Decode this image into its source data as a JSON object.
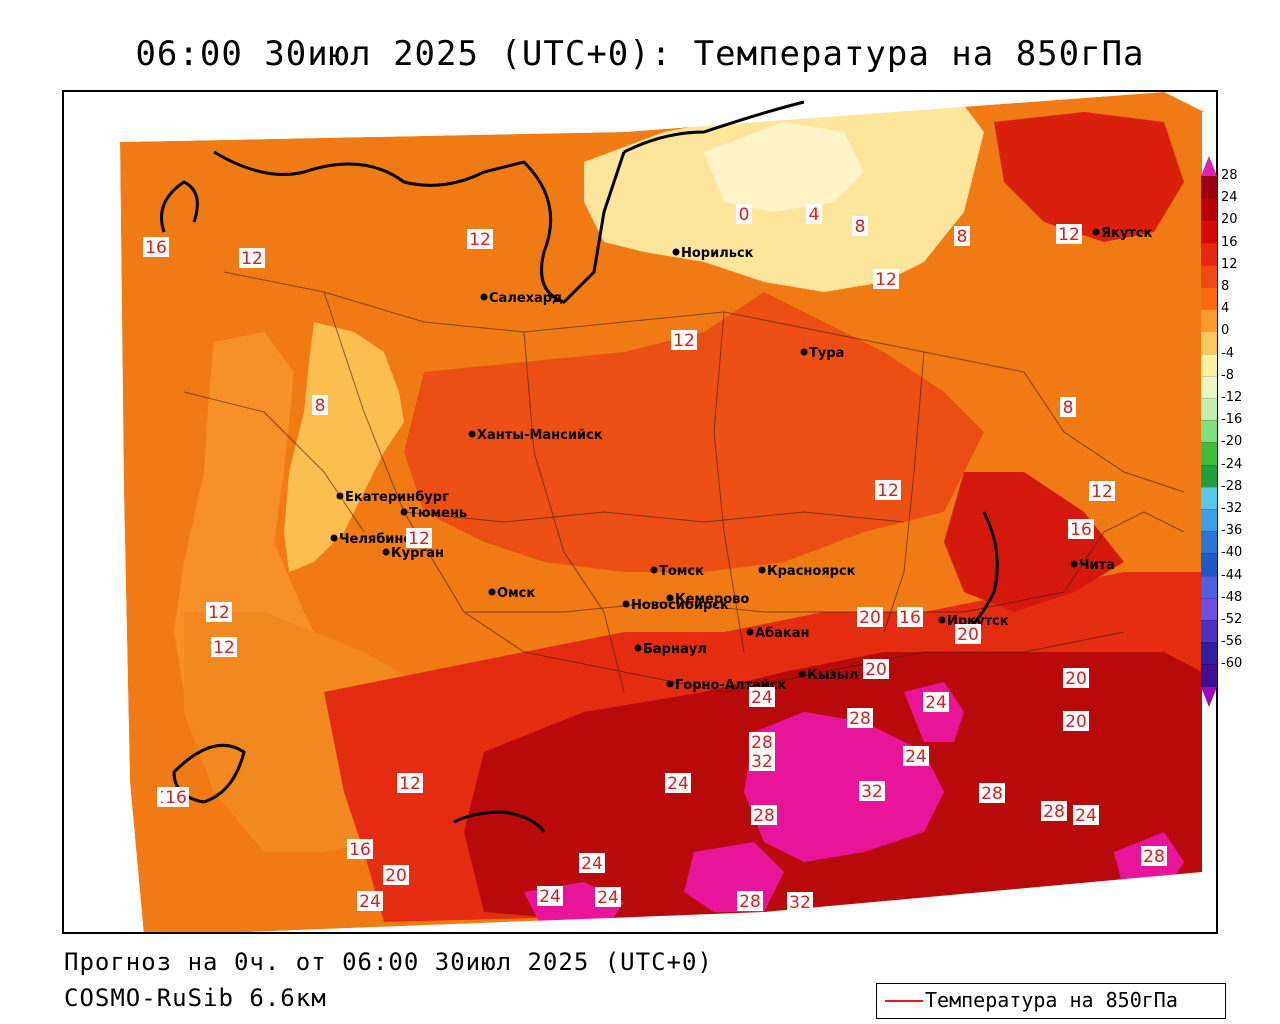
{
  "title": "06:00 30июл 2025 (UTC+0): Температура на 850гПа",
  "footer": {
    "forecast": "Прогноз на 0ч. от 06:00 30июл 2025 (UTC+0)",
    "model": "COSMO-RuSib 6.6км"
  },
  "legend": {
    "line_label": "Температура на 850гПа",
    "line_color": "#e8141e"
  },
  "colorbar": {
    "ticks": [
      "28",
      "24",
      "20",
      "16",
      "12",
      "8",
      "4",
      "0",
      "-4",
      "-8",
      "-12",
      "-16",
      "-20",
      "-24",
      "-28",
      "-32",
      "-36",
      "-40",
      "-44",
      "-48",
      "-52",
      "-56",
      "-60"
    ],
    "colors": [
      "#9c0010",
      "#b8000a",
      "#d40a0a",
      "#e62a12",
      "#f04a10",
      "#fa6a0a",
      "#fc9a2a",
      "#fcc85a",
      "#fdf0a0",
      "#e8f8c0",
      "#c0f0b0",
      "#80e080",
      "#3cc03c",
      "#20a03c",
      "#58c8e8",
      "#3aa0e8",
      "#2878d8",
      "#2058c8",
      "#5060e0",
      "#7050e0",
      "#5030c0",
      "#3020a0",
      "#401090"
    ],
    "top_color": "#e020b0",
    "bottom_color": "#a000c0"
  },
  "cities": [
    {
      "name": "Салехард"
    },
    {
      "name": "Норильск"
    },
    {
      "name": "Якутск"
    },
    {
      "name": "Тура"
    },
    {
      "name": "Ханты-Мансийск"
    },
    {
      "name": "Екатеринбург"
    },
    {
      "name": "Тюмень"
    },
    {
      "name": "Челябинск"
    },
    {
      "name": "Курган"
    },
    {
      "name": "Омск"
    },
    {
      "name": "Новосибирск"
    },
    {
      "name": "Томск"
    },
    {
      "name": "Кемерово"
    },
    {
      "name": "Красноярск"
    },
    {
      "name": "Абакан"
    },
    {
      "name": "Барнаул"
    },
    {
      "name": "Горно-Алтайск"
    },
    {
      "name": "Кызыл"
    },
    {
      "name": "Иркутск"
    },
    {
      "name": "Чита"
    }
  ],
  "isolabels": [
    "16",
    "12",
    "12",
    "0",
    "4",
    "8",
    "8",
    "12",
    "12",
    "12",
    "8",
    "12",
    "8",
    "12",
    "12",
    "16",
    "12",
    "12",
    "12",
    "16",
    "16",
    "20",
    "16",
    "20",
    "20",
    "24",
    "28",
    "32",
    "28",
    "32",
    "24",
    "24",
    "32",
    "28",
    "28",
    "24",
    "20",
    "20",
    "24",
    "16",
    "12",
    "16",
    "20",
    "24",
    "24",
    "24",
    "24",
    "28",
    "32",
    "28",
    "28"
  ]
}
